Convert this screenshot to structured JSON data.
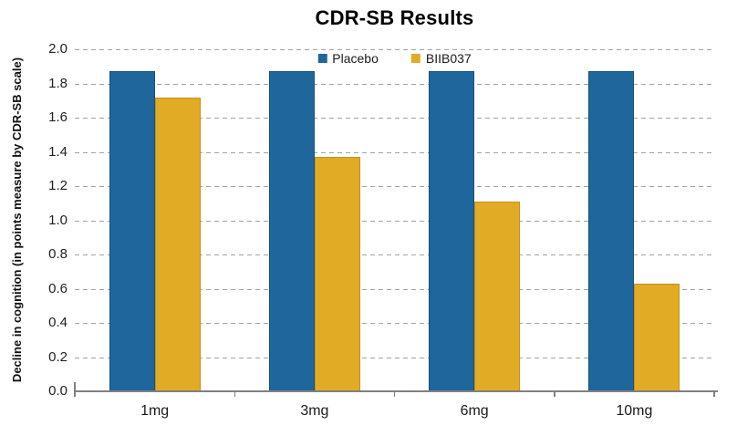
{
  "page": {
    "background": "#ffffff"
  },
  "chart_data": {
    "type": "bar",
    "title": "CDR-SB Results",
    "categories": [
      "1mg",
      "3mg",
      "6mg",
      "10mg"
    ],
    "series": [
      {
        "name": "Placebo",
        "color": "#1f669c",
        "border_color": "#16517f",
        "values": [
          1.87,
          1.87,
          1.87,
          1.87
        ]
      },
      {
        "name": "BIIB037",
        "color": "#e2ab25",
        "border_color": "#c2911c",
        "values": [
          1.72,
          1.37,
          1.11,
          0.63
        ]
      }
    ],
    "xlabel": "",
    "ylabel": "Decline in cognition (in points measure by CDR-SB scale)",
    "ylim": [
      0,
      2.0
    ],
    "ytick_step": 0.2,
    "ytick_labels": [
      "0.0",
      "0.2",
      "0.4",
      "0.6",
      "0.8",
      "1.0",
      "1.2",
      "1.4",
      "1.6",
      "1.8",
      "2.0"
    ],
    "grid": {
      "horizontal": true,
      "style": "dashed",
      "color": "#a3a3a3"
    },
    "axis_color": "#808080",
    "legend": {
      "position": "top-center-inside"
    }
  }
}
